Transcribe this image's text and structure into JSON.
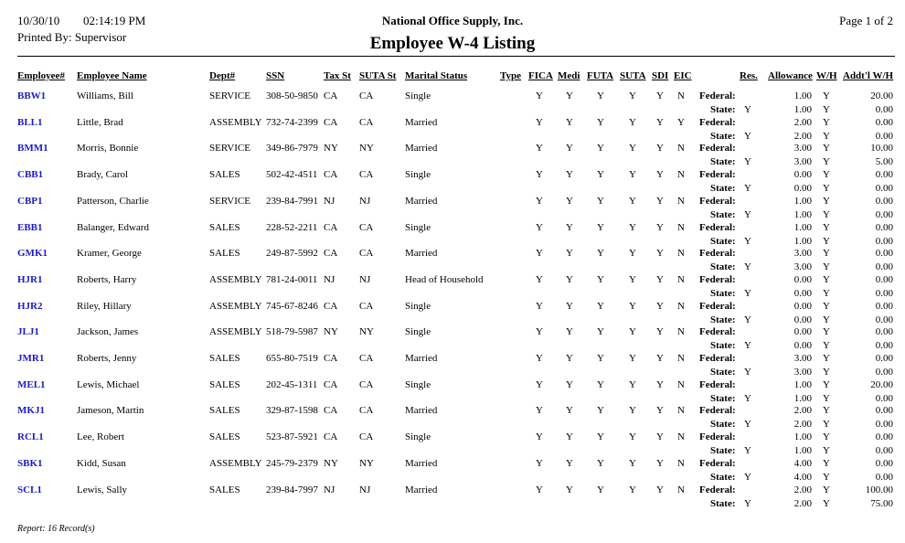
{
  "header": {
    "date": "10/30/10",
    "time": "02:14:19 PM",
    "printed_by": "Printed By: Supervisor",
    "company": "National Office Supply, Inc.",
    "title": "Employee W-4 Listing",
    "page": "Page 1 of 2"
  },
  "columns": {
    "employee": "Employee#",
    "name": "Employee Name",
    "dept": "Dept#",
    "ssn": "SSN",
    "taxst": "Tax St",
    "sutast": "SUTA St",
    "marital": "Marital Status",
    "type": "Type",
    "fica": "FICA",
    "medi": "Medi",
    "futa": "FUTA",
    "suta": "SUTA",
    "sdi": "SDI",
    "eic": "EIC",
    "res": "Res.",
    "allowance": "Allowance",
    "wh": "W/H",
    "addtl": "Addt'l W/H"
  },
  "labels": {
    "federal": "Federal:",
    "state": "State:"
  },
  "records": [
    {
      "id": "BBW1",
      "name": "Williams, Bill",
      "dept": "SERVICE",
      "ssn": "308-50-9850",
      "taxst": "CA",
      "sutast": "CA",
      "marital": "Single",
      "type": "",
      "fica": "Y",
      "medi": "Y",
      "futa": "Y",
      "suta": "Y",
      "sdi": "Y",
      "eic": "N",
      "federal": {
        "allowance": "1.00",
        "wh": "Y",
        "addtl": "20.00"
      },
      "state": {
        "res": "Y",
        "allowance": "1.00",
        "wh": "Y",
        "addtl": "0.00"
      }
    },
    {
      "id": "BLL1",
      "name": "Little, Brad",
      "dept": "ASSEMBLY",
      "ssn": "732-74-2399",
      "taxst": "CA",
      "sutast": "CA",
      "marital": "Married",
      "type": "",
      "fica": "Y",
      "medi": "Y",
      "futa": "Y",
      "suta": "Y",
      "sdi": "Y",
      "eic": "Y",
      "federal": {
        "allowance": "2.00",
        "wh": "Y",
        "addtl": "0.00"
      },
      "state": {
        "res": "Y",
        "allowance": "2.00",
        "wh": "Y",
        "addtl": "0.00"
      }
    },
    {
      "id": "BMM1",
      "name": "Morris, Bonnie",
      "dept": "SERVICE",
      "ssn": "349-86-7979",
      "taxst": "NY",
      "sutast": "NY",
      "marital": "Married",
      "type": "",
      "fica": "Y",
      "medi": "Y",
      "futa": "Y",
      "suta": "Y",
      "sdi": "Y",
      "eic": "N",
      "federal": {
        "allowance": "3.00",
        "wh": "Y",
        "addtl": "10.00"
      },
      "state": {
        "res": "Y",
        "allowance": "3.00",
        "wh": "Y",
        "addtl": "5.00"
      }
    },
    {
      "id": "CBB1",
      "name": "Brady, Carol",
      "dept": "SALES",
      "ssn": "502-42-4511",
      "taxst": "CA",
      "sutast": "CA",
      "marital": "Single",
      "type": "",
      "fica": "Y",
      "medi": "Y",
      "futa": "Y",
      "suta": "Y",
      "sdi": "Y",
      "eic": "N",
      "federal": {
        "allowance": "0.00",
        "wh": "Y",
        "addtl": "0.00"
      },
      "state": {
        "res": "Y",
        "allowance": "0.00",
        "wh": "Y",
        "addtl": "0.00"
      }
    },
    {
      "id": "CBP1",
      "name": "Patterson, Charlie",
      "dept": "SERVICE",
      "ssn": "239-84-7991",
      "taxst": "NJ",
      "sutast": "NJ",
      "marital": "Married",
      "type": "",
      "fica": "Y",
      "medi": "Y",
      "futa": "Y",
      "suta": "Y",
      "sdi": "Y",
      "eic": "N",
      "federal": {
        "allowance": "1.00",
        "wh": "Y",
        "addtl": "0.00"
      },
      "state": {
        "res": "Y",
        "allowance": "1.00",
        "wh": "Y",
        "addtl": "0.00"
      }
    },
    {
      "id": "EBB1",
      "name": "Balanger, Edward",
      "dept": "SALES",
      "ssn": "228-52-2211",
      "taxst": "CA",
      "sutast": "CA",
      "marital": "Single",
      "type": "",
      "fica": "Y",
      "medi": "Y",
      "futa": "Y",
      "suta": "Y",
      "sdi": "Y",
      "eic": "N",
      "federal": {
        "allowance": "1.00",
        "wh": "Y",
        "addtl": "0.00"
      },
      "state": {
        "res": "Y",
        "allowance": "1.00",
        "wh": "Y",
        "addtl": "0.00"
      }
    },
    {
      "id": "GMK1",
      "name": "Kramer, George",
      "dept": "SALES",
      "ssn": "249-87-5992",
      "taxst": "CA",
      "sutast": "CA",
      "marital": "Married",
      "type": "",
      "fica": "Y",
      "medi": "Y",
      "futa": "Y",
      "suta": "Y",
      "sdi": "Y",
      "eic": "N",
      "federal": {
        "allowance": "3.00",
        "wh": "Y",
        "addtl": "0.00"
      },
      "state": {
        "res": "Y",
        "allowance": "3.00",
        "wh": "Y",
        "addtl": "0.00"
      }
    },
    {
      "id": "HJR1",
      "name": "Roberts, Harry",
      "dept": "ASSEMBLY",
      "ssn": "781-24-0011",
      "taxst": "NJ",
      "sutast": "NJ",
      "marital": "Head of Household",
      "type": "",
      "fica": "Y",
      "medi": "Y",
      "futa": "Y",
      "suta": "Y",
      "sdi": "Y",
      "eic": "N",
      "federal": {
        "allowance": "0.00",
        "wh": "Y",
        "addtl": "0.00"
      },
      "state": {
        "res": "Y",
        "allowance": "0.00",
        "wh": "Y",
        "addtl": "0.00"
      }
    },
    {
      "id": "HJR2",
      "name": "Riley, Hillary",
      "dept": "ASSEMBLY",
      "ssn": "745-67-8246",
      "taxst": "CA",
      "sutast": "CA",
      "marital": "Single",
      "type": "",
      "fica": "Y",
      "medi": "Y",
      "futa": "Y",
      "suta": "Y",
      "sdi": "Y",
      "eic": "N",
      "federal": {
        "allowance": "0.00",
        "wh": "Y",
        "addtl": "0.00"
      },
      "state": {
        "res": "Y",
        "allowance": "0.00",
        "wh": "Y",
        "addtl": "0.00"
      }
    },
    {
      "id": "JLJ1",
      "name": "Jackson, James",
      "dept": "ASSEMBLY",
      "ssn": "518-79-5987",
      "taxst": "NY",
      "sutast": "NY",
      "marital": "Single",
      "type": "",
      "fica": "Y",
      "medi": "Y",
      "futa": "Y",
      "suta": "Y",
      "sdi": "Y",
      "eic": "N",
      "federal": {
        "allowance": "0.00",
        "wh": "Y",
        "addtl": "0.00"
      },
      "state": {
        "res": "Y",
        "allowance": "0.00",
        "wh": "Y",
        "addtl": "0.00"
      }
    },
    {
      "id": "JMR1",
      "name": "Roberts, Jenny",
      "dept": "SALES",
      "ssn": "655-80-7519",
      "taxst": "CA",
      "sutast": "CA",
      "marital": "Married",
      "type": "",
      "fica": "Y",
      "medi": "Y",
      "futa": "Y",
      "suta": "Y",
      "sdi": "Y",
      "eic": "N",
      "federal": {
        "allowance": "3.00",
        "wh": "Y",
        "addtl": "0.00"
      },
      "state": {
        "res": "Y",
        "allowance": "3.00",
        "wh": "Y",
        "addtl": "0.00"
      }
    },
    {
      "id": "MEL1",
      "name": "Lewis, Michael",
      "dept": "SALES",
      "ssn": "202-45-1311",
      "taxst": "CA",
      "sutast": "CA",
      "marital": "Single",
      "type": "",
      "fica": "Y",
      "medi": "Y",
      "futa": "Y",
      "suta": "Y",
      "sdi": "Y",
      "eic": "N",
      "federal": {
        "allowance": "1.00",
        "wh": "Y",
        "addtl": "20.00"
      },
      "state": {
        "res": "Y",
        "allowance": "1.00",
        "wh": "Y",
        "addtl": "0.00"
      }
    },
    {
      "id": "MKJ1",
      "name": "Jameson, Martin",
      "dept": "SALES",
      "ssn": "329-87-1598",
      "taxst": "CA",
      "sutast": "CA",
      "marital": "Married",
      "type": "",
      "fica": "Y",
      "medi": "Y",
      "futa": "Y",
      "suta": "Y",
      "sdi": "Y",
      "eic": "N",
      "federal": {
        "allowance": "2.00",
        "wh": "Y",
        "addtl": "0.00"
      },
      "state": {
        "res": "Y",
        "allowance": "2.00",
        "wh": "Y",
        "addtl": "0.00"
      }
    },
    {
      "id": "RCL1",
      "name": "Lee, Robert",
      "dept": "SALES",
      "ssn": "523-87-5921",
      "taxst": "CA",
      "sutast": "CA",
      "marital": "Single",
      "type": "",
      "fica": "Y",
      "medi": "Y",
      "futa": "Y",
      "suta": "Y",
      "sdi": "Y",
      "eic": "N",
      "federal": {
        "allowance": "1.00",
        "wh": "Y",
        "addtl": "0.00"
      },
      "state": {
        "res": "Y",
        "allowance": "1.00",
        "wh": "Y",
        "addtl": "0.00"
      }
    },
    {
      "id": "SBK1",
      "name": "Kidd, Susan",
      "dept": "ASSEMBLY",
      "ssn": "245-79-2379",
      "taxst": "NY",
      "sutast": "NY",
      "marital": "Married",
      "type": "",
      "fica": "Y",
      "medi": "Y",
      "futa": "Y",
      "suta": "Y",
      "sdi": "Y",
      "eic": "N",
      "federal": {
        "allowance": "4.00",
        "wh": "Y",
        "addtl": "0.00"
      },
      "state": {
        "res": "Y",
        "allowance": "4.00",
        "wh": "Y",
        "addtl": "0.00"
      }
    },
    {
      "id": "SCL1",
      "name": "Lewis, Sally",
      "dept": "SALES",
      "ssn": "239-84-7997",
      "taxst": "NJ",
      "sutast": "NJ",
      "marital": "Married",
      "type": "",
      "fica": "Y",
      "medi": "Y",
      "futa": "Y",
      "suta": "Y",
      "sdi": "Y",
      "eic": "N",
      "federal": {
        "allowance": "2.00",
        "wh": "Y",
        "addtl": "100.00"
      },
      "state": {
        "res": "Y",
        "allowance": "2.00",
        "wh": "Y",
        "addtl": "75.00"
      }
    }
  ],
  "footer": {
    "summary": "Report: 16 Record(s)"
  },
  "colors": {
    "employee_link": "#1a1acc"
  }
}
